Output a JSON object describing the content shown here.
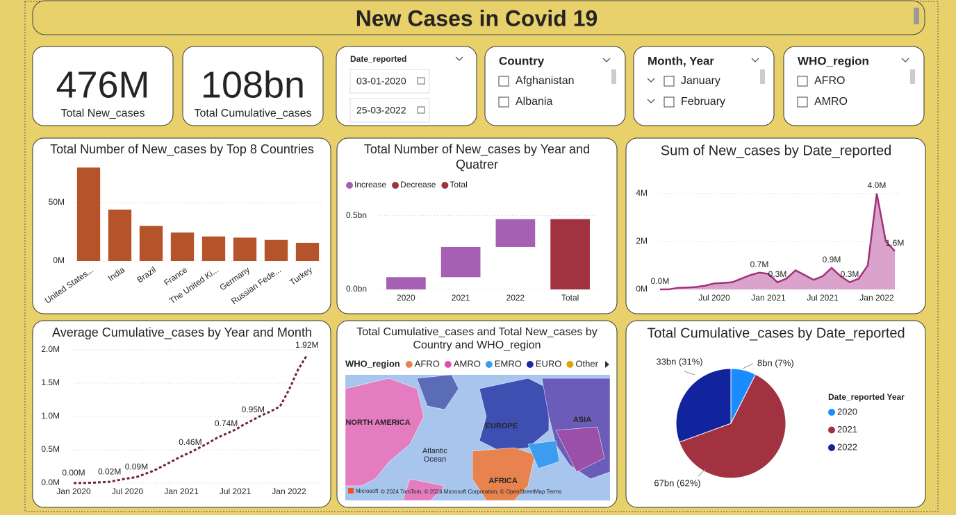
{
  "header": {
    "title": "New Cases in Covid 19"
  },
  "cards": [
    {
      "value": "476M",
      "label": "Total New_cases"
    },
    {
      "value": "108bn",
      "label": "Total Cumulative_cases"
    }
  ],
  "date_slicer": {
    "title": "Date_reported",
    "start": "03-01-2020",
    "end": "25-03-2022"
  },
  "slicers": [
    {
      "title": "Country",
      "items": [
        "Afghanistan",
        "Albania"
      ],
      "hierarchy": false
    },
    {
      "title": "Month, Year",
      "items": [
        "January",
        "February"
      ],
      "hierarchy": true
    },
    {
      "title": "WHO_region",
      "items": [
        "AFRO",
        "AMRO"
      ],
      "hierarchy": false
    }
  ],
  "chart_data": [
    {
      "type": "bar",
      "title": "Total Number of New_cases by Top 8 Countries",
      "categories": [
        "United States...",
        "India",
        "Brazil",
        "France",
        "The United Ki...",
        "Germany",
        "Russian Fede...",
        "Turkey"
      ],
      "values": [
        80000000,
        44000000,
        30000000,
        24400000,
        21000000,
        20000000,
        18000000,
        15500000
      ],
      "color": "#b5532a",
      "ylim": [
        0,
        85000000
      ],
      "yticks": [
        {
          "value": 0,
          "label": "0M"
        },
        {
          "value": 50000000,
          "label": "50M"
        }
      ],
      "grid": true
    },
    {
      "type": "waterfall",
      "title": "Total Number of New_cases by Year and Quatrer",
      "legend": [
        {
          "name": "Increase",
          "color": "#a560b3"
        },
        {
          "name": "Decrease",
          "color": "#a2323f"
        },
        {
          "name": "Total",
          "color": "#a2323f"
        }
      ],
      "categories": [
        "2020",
        "2021",
        "2022",
        "Total"
      ],
      "values": [
        83000000,
        204000000,
        189000000,
        476000000
      ],
      "is_total": [
        false,
        false,
        false,
        true
      ],
      "ylim": [
        0,
        550000000
      ],
      "yticks": [
        {
          "value": 0,
          "label": "0.0bn"
        },
        {
          "value": 500000000,
          "label": "0.5bn"
        }
      ],
      "grid": true
    },
    {
      "type": "area",
      "title": "Sum of New_cases by Date_reported",
      "categories": [
        null,
        null,
        null,
        null,
        null,
        null,
        "Jul 2020",
        null,
        null,
        null,
        null,
        null,
        "Jan 2021",
        null,
        null,
        null,
        null,
        null,
        "Jul 2021",
        null,
        null,
        null,
        null,
        null,
        "Jan 2022",
        null,
        null
      ],
      "values": [
        0,
        2000,
        70000,
        80000,
        100000,
        160000,
        250000,
        270000,
        300000,
        450000,
        600000,
        700000,
        650000,
        300000,
        450000,
        800000,
        600000,
        400000,
        550000,
        900000,
        550000,
        300000,
        450000,
        1000000,
        4000000,
        2000000,
        1600000
      ],
      "value_labels": [
        "0.0M",
        null,
        null,
        null,
        null,
        null,
        null,
        null,
        null,
        null,
        null,
        "0.7M",
        null,
        "0.3M",
        null,
        null,
        null,
        null,
        null,
        "0.9M",
        null,
        "0.3M",
        null,
        null,
        "4.0M",
        null,
        "1.6M"
      ],
      "color": "#a3307a",
      "fill": "#d9a3cc",
      "ylim": [
        0,
        4400000
      ],
      "yticks": [
        {
          "value": 0,
          "label": "0M"
        },
        {
          "value": 2000000,
          "label": "2M"
        },
        {
          "value": 4000000,
          "label": "4M"
        }
      ],
      "grid": true
    },
    {
      "type": "line",
      "title": "Average Cumulative_cases by Year and Month",
      "categories": [
        "Jan 2020",
        null,
        null,
        null,
        null,
        null,
        "Jul 2020",
        null,
        null,
        null,
        null,
        null,
        "Jan 2021",
        null,
        null,
        null,
        null,
        null,
        "Jul 2021",
        null,
        null,
        null,
        null,
        null,
        "Jan 2022",
        null,
        null
      ],
      "values": [
        0,
        1000,
        5000,
        12000,
        20000,
        45000,
        70000,
        90000,
        140000,
        190000,
        260000,
        330000,
        400000,
        460000,
        530000,
        600000,
        680000,
        740000,
        800000,
        880000,
        950000,
        1020000,
        1080000,
        1150000,
        1400000,
        1700000,
        1920000
      ],
      "value_labels": [
        "0.00M",
        null,
        null,
        null,
        "0.02M",
        null,
        null,
        "0.09M",
        null,
        null,
        null,
        null,
        null,
        "0.46M",
        null,
        null,
        null,
        "0.74M",
        null,
        null,
        "0.95M",
        null,
        null,
        null,
        null,
        null,
        "1.92M"
      ],
      "color": "#6b2630",
      "dashed": true,
      "ylim": [
        0,
        2000000
      ],
      "yticks": [
        {
          "value": 0,
          "label": "0.0M"
        },
        {
          "value": 500000,
          "label": "0.5M"
        },
        {
          "value": 1000000,
          "label": "1.0M"
        },
        {
          "value": 1500000,
          "label": "1.5M"
        },
        {
          "value": 2000000,
          "label": "2.0M"
        }
      ],
      "grid": true
    },
    {
      "type": "map",
      "title": "Total Cumulative_cases and Total New_cases by Country and WHO_region",
      "legend_title": "WHO_region",
      "legend": [
        {
          "name": "AFRO",
          "color": "#e8834f"
        },
        {
          "name": "AMRO",
          "color": "#e04fa6"
        },
        {
          "name": "EMRO",
          "color": "#3b9df0"
        },
        {
          "name": "EURO",
          "color": "#1c2b9c"
        },
        {
          "name": "Other",
          "color": "#d9a800"
        }
      ],
      "labels": [
        "NORTH AMERICA",
        "EUROPE",
        "ASIA",
        "Atlantic",
        "Ocean",
        "AFRICA"
      ],
      "logo": "Microsoft",
      "attribution": "© 2024 TomTom, © 2024 Microsoft Corporation, © OpenStreetMap  Terms"
    },
    {
      "type": "pie",
      "title": "Total Cumulative_cases by Date_reported",
      "legend_title": "Date_reported Year",
      "categories": [
        "2020",
        "2021",
        "2022"
      ],
      "values": [
        8000000000,
        67000000000,
        33000000000
      ],
      "value_labels": [
        "8bn (7%)",
        "67bn (62%)",
        "33bn (31%)"
      ],
      "colors": [
        "#1a8cff",
        "#a2323f",
        "#12239e"
      ]
    }
  ]
}
